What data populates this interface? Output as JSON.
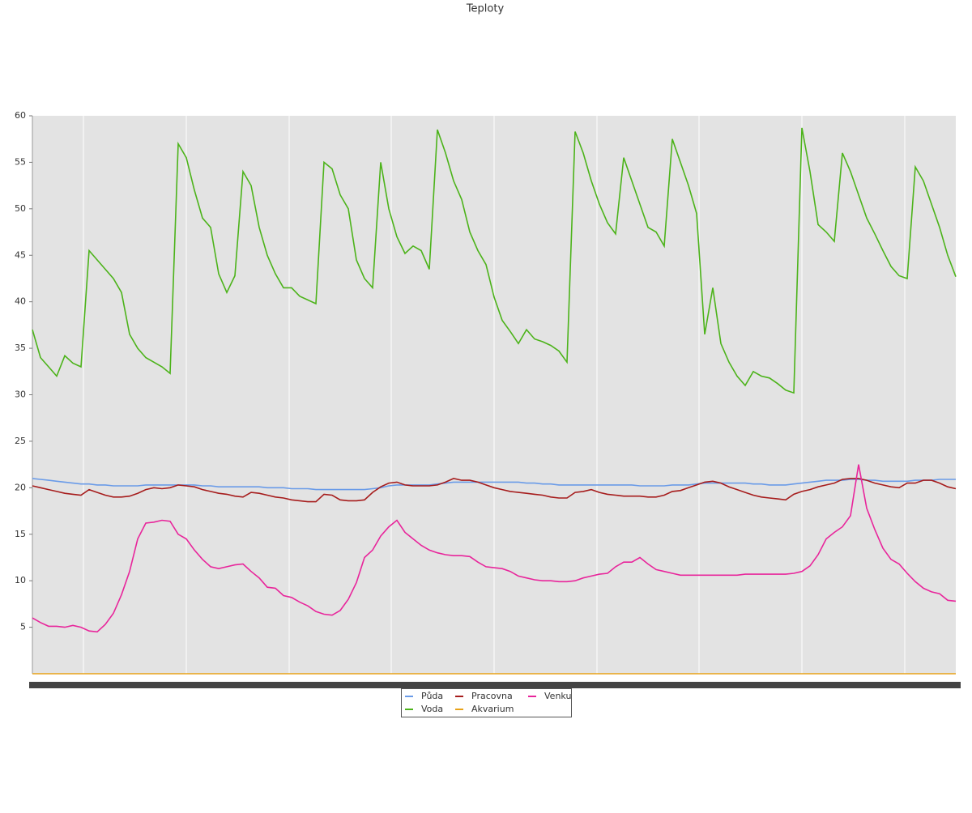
{
  "chart_data": {
    "type": "line",
    "title": "Teploty",
    "categories": [
      null,
      null,
      null,
      null,
      null,
      null,
      null,
      null,
      null,
      null,
      null,
      null,
      null,
      null,
      null,
      null,
      null,
      null,
      null,
      null,
      null,
      null,
      null,
      null,
      null,
      null,
      null,
      null,
      null,
      null,
      null,
      null,
      null,
      null,
      null,
      null,
      null,
      null,
      null,
      null,
      null,
      null,
      null,
      null,
      null,
      null,
      null,
      null,
      null,
      null,
      null,
      null,
      null,
      null,
      null,
      null,
      null,
      null,
      null,
      null,
      null,
      null,
      null,
      null,
      null,
      null,
      null,
      null,
      null,
      null,
      null,
      null,
      null,
      null,
      null,
      null,
      null,
      null,
      null,
      null,
      null,
      null,
      null,
      null,
      null,
      null,
      null,
      null,
      null,
      null,
      null,
      null,
      null,
      null,
      null,
      null,
      null,
      null,
      null,
      null,
      null,
      null,
      null,
      null,
      null,
      null,
      null,
      null,
      null,
      null,
      null,
      null,
      null,
      null,
      null
    ],
    "series": [
      {
        "name": "Půda",
        "color": "#6a9be8",
        "values": [
          21,
          20.9,
          20.8,
          20.7,
          20.6,
          20.5,
          20.4,
          20.4,
          20.3,
          20.3,
          20.2,
          20.2,
          20.2,
          20.2,
          20.3,
          20.3,
          20.3,
          20.3,
          20.3,
          20.3,
          20.3,
          20.2,
          20.2,
          20.1,
          20.1,
          20.1,
          20.1,
          20.1,
          20.1,
          20,
          20,
          20,
          19.9,
          19.9,
          19.9,
          19.8,
          19.8,
          19.8,
          19.8,
          19.8,
          19.8,
          19.8,
          19.9,
          20,
          20.2,
          20.3,
          20.3,
          20.3,
          20.3,
          20.3,
          20.4,
          20.5,
          20.6,
          20.6,
          20.6,
          20.6,
          20.6,
          20.6,
          20.6,
          20.6,
          20.6,
          20.5,
          20.5,
          20.4,
          20.4,
          20.3,
          20.3,
          20.3,
          20.3,
          20.3,
          20.3,
          20.3,
          20.3,
          20.3,
          20.3,
          20.2,
          20.2,
          20.2,
          20.2,
          20.3,
          20.3,
          20.3,
          20.4,
          20.5,
          20.5,
          20.5,
          20.5,
          20.5,
          20.5,
          20.4,
          20.4,
          20.3,
          20.3,
          20.3,
          20.4,
          20.5,
          20.6,
          20.7,
          20.8,
          20.8,
          20.8,
          20.9,
          20.9,
          20.8,
          20.8,
          20.7,
          20.7,
          20.7,
          20.7,
          20.8,
          20.8,
          20.8,
          20.9,
          20.9,
          20.9
        ]
      },
      {
        "name": "Voda",
        "color": "#4cb31a",
        "values": [
          37,
          34,
          33,
          32,
          34.2,
          33.4,
          33,
          45.5,
          44.5,
          43.5,
          42.5,
          41,
          36.5,
          35,
          34,
          33.5,
          33,
          32.3,
          57,
          55.5,
          52,
          49,
          48,
          43,
          41,
          42.8,
          54,
          52.5,
          48,
          45,
          43,
          41.5,
          41.5,
          40.6,
          40.2,
          39.8,
          55,
          54.3,
          51.5,
          50,
          44.5,
          42.5,
          41.5,
          55,
          50,
          47,
          45.2,
          46,
          45.5,
          43.5,
          58.5,
          56,
          53,
          51,
          47.5,
          45.5,
          44,
          40.5,
          38,
          36.8,
          35.5,
          37,
          36,
          35.7,
          35.3,
          34.7,
          33.5,
          58.3,
          56,
          53,
          50.5,
          48.5,
          47.3,
          55.5,
          53,
          50.5,
          48,
          47.5,
          46,
          57.5,
          55,
          52.5,
          49.5,
          36.5,
          41.5,
          35.5,
          33.5,
          32,
          31,
          32.5,
          32,
          31.8,
          31.2,
          30.5,
          30.2,
          58.7,
          54,
          48.3,
          47.5,
          46.5,
          56,
          54,
          51.5,
          49,
          47.3,
          45.5,
          43.8,
          42.8,
          42.5,
          54.5,
          53,
          50.5,
          48,
          45,
          42.7
        ]
      },
      {
        "name": "Pracovna",
        "color": "#a61c1c",
        "values": [
          20.2,
          20,
          19.8,
          19.6,
          19.4,
          19.3,
          19.2,
          19.8,
          19.5,
          19.2,
          19,
          19,
          19.1,
          19.4,
          19.8,
          20,
          19.9,
          20,
          20.3,
          20.2,
          20.1,
          19.8,
          19.6,
          19.4,
          19.3,
          19.1,
          19,
          19.5,
          19.4,
          19.2,
          19,
          18.9,
          18.7,
          18.6,
          18.5,
          18.5,
          19.3,
          19.2,
          18.7,
          18.6,
          18.6,
          18.7,
          19.5,
          20.1,
          20.5,
          20.6,
          20.3,
          20.2,
          20.2,
          20.2,
          20.3,
          20.6,
          21,
          20.8,
          20.8,
          20.6,
          20.3,
          20,
          19.8,
          19.6,
          19.5,
          19.4,
          19.3,
          19.2,
          19,
          18.9,
          18.9,
          19.5,
          19.6,
          19.8,
          19.5,
          19.3,
          19.2,
          19.1,
          19.1,
          19.1,
          19,
          19,
          19.2,
          19.6,
          19.7,
          20,
          20.3,
          20.6,
          20.7,
          20.5,
          20.1,
          19.8,
          19.5,
          19.2,
          19,
          18.9,
          18.8,
          18.7,
          19.3,
          19.6,
          19.8,
          20.1,
          20.3,
          20.5,
          20.9,
          21,
          21,
          20.8,
          20.5,
          20.3,
          20.1,
          20,
          20.5,
          20.5,
          20.8,
          20.8,
          20.5,
          20.1,
          19.9
        ]
      },
      {
        "name": "Akvarium",
        "color": "#e8a218",
        "values": [
          0,
          0,
          0,
          0,
          0,
          0,
          0,
          0,
          0,
          0,
          0,
          0,
          0,
          0,
          0,
          0,
          0,
          0,
          0,
          0,
          0,
          0,
          0,
          0,
          0,
          0,
          0,
          0,
          0,
          0,
          0,
          0,
          0,
          0,
          0,
          0,
          0,
          0,
          0,
          0,
          0,
          0,
          0,
          0,
          0,
          0,
          0,
          0,
          0,
          0,
          0,
          0,
          0,
          0,
          0,
          0,
          0,
          0,
          0,
          0,
          0,
          0,
          0,
          0,
          0,
          0,
          0,
          0,
          0,
          0,
          0,
          0,
          0,
          0,
          0,
          0,
          0,
          0,
          0,
          0,
          0,
          0,
          0,
          0,
          0,
          0,
          0,
          0,
          0,
          0,
          0,
          0,
          0,
          0,
          0,
          0,
          0,
          0,
          0,
          0,
          0,
          0,
          0,
          0,
          0,
          0,
          0,
          0,
          0,
          0,
          0,
          0,
          0,
          0,
          0
        ]
      },
      {
        "name": "Venku",
        "color": "#e8259b",
        "values": [
          6,
          5.5,
          5.1,
          5.1,
          5,
          5.2,
          5,
          4.6,
          4.5,
          5.3,
          6.5,
          8.5,
          11,
          14.5,
          16.2,
          16.3,
          16.5,
          16.4,
          15,
          14.5,
          13.3,
          12.3,
          11.5,
          11.3,
          11.5,
          11.7,
          11.8,
          11,
          10.3,
          9.3,
          9.2,
          8.4,
          8.2,
          7.7,
          7.3,
          6.7,
          6.4,
          6.3,
          6.8,
          8,
          9.8,
          12.5,
          13.3,
          14.8,
          15.8,
          16.5,
          15.2,
          14.5,
          13.8,
          13.3,
          13,
          12.8,
          12.7,
          12.7,
          12.6,
          12,
          11.5,
          11.4,
          11.3,
          11,
          10.5,
          10.3,
          10.1,
          10,
          10,
          9.9,
          9.9,
          10,
          10.3,
          10.5,
          10.7,
          10.8,
          11.5,
          12,
          12,
          12.5,
          11.8,
          11.2,
          11,
          10.8,
          10.6,
          10.6,
          10.6,
          10.6,
          10.6,
          10.6,
          10.6,
          10.6,
          10.7,
          10.7,
          10.7,
          10.7,
          10.7,
          10.7,
          10.8,
          11,
          11.6,
          12.8,
          14.5,
          15.2,
          15.8,
          17,
          22.5,
          17.8,
          15.5,
          13.5,
          12.3,
          11.8,
          10.8,
          9.9,
          9.2,
          8.8,
          8.6,
          7.9,
          7.8
        ]
      }
    ],
    "ylim": [
      0,
      60
    ],
    "yticks": [
      5,
      10,
      15,
      20,
      25,
      30,
      35,
      40,
      45,
      50,
      55,
      60
    ]
  }
}
